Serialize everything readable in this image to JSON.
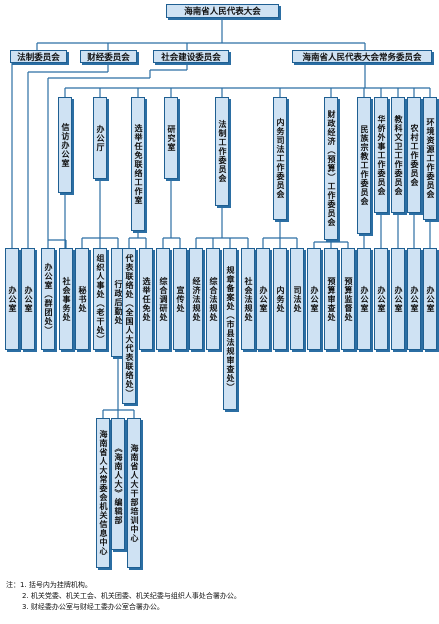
{
  "root": "海南省人民代表大会",
  "committees": {
    "legal": "法制委员会",
    "finance": "财经委员会",
    "social": "社会建设委员会",
    "standing": "海南省人民代表大会常务委员会"
  },
  "offices": {
    "xinfang": "信访办公室",
    "bangongting": "办公厅",
    "xuanju": "选举任免联络工作室",
    "yanjiu": "研究室",
    "fazhi": "法制工作委员会",
    "neiwu": "内务司法工作委员会",
    "caizheng": "财政经济（预算）工作委员会",
    "minzu": "民族宗教工作委员会",
    "huaqiao": "华侨外事工作委员会",
    "jiaoke": "教科文卫工作委员会",
    "nongcun": "农村工作委员会",
    "huanjing": "环境资源工作委员会"
  },
  "units": {
    "legal_office": "办公室",
    "finance_office": "办公室",
    "social_office": "办公室（群团处）",
    "social_affairs": "社会事务处",
    "xinfang_office": "办公室",
    "mishu": "秘书处",
    "zuzhi": "组织人事处（老干处）",
    "xingzheng": "行政后勤处",
    "daibiao": "代表联络处（全国人大代表联络处）",
    "xuanju_renmian": "选举任免处",
    "zonghe_diaoyan": "综合调研处",
    "xuanchuan": "宣传处",
    "jingji_fagui": "经济法规处",
    "zonghe_fagui": "综合法规处",
    "guizhang": "规章备案处（市县法规审查处）",
    "shehui_fagui": "社会法规处",
    "neiwu_office": "办公室",
    "neiwu_chu": "内务处",
    "sifa": "司法处",
    "caizheng_office": "办公室",
    "yusuan_shencha": "预算审查处",
    "yusuan_jiandu": "预算监督处",
    "minzu_office": "办公室",
    "huaqiao_office": "办公室",
    "jiaoke_office": "办公室",
    "nongcun_office": "办公室",
    "huanjing_office": "办公室"
  },
  "subunits": {
    "xinxi": "海南省人大常委会机关信息中心",
    "bianji": "《海南人大》编辑部",
    "peixun": "海南省人大干部培训中心"
  },
  "notes": [
    "注：1. 括号内为挂牌机构。",
    "2. 机关党委、机关工会、机关团委、机关纪委与组织人事处合署办公。",
    "3. 财经委办公室与财经工委办公室合署办公。"
  ],
  "colors": {
    "box_fill": "#cfe2f3",
    "border": "#1f5f92",
    "line": "#2b6ea3"
  }
}
